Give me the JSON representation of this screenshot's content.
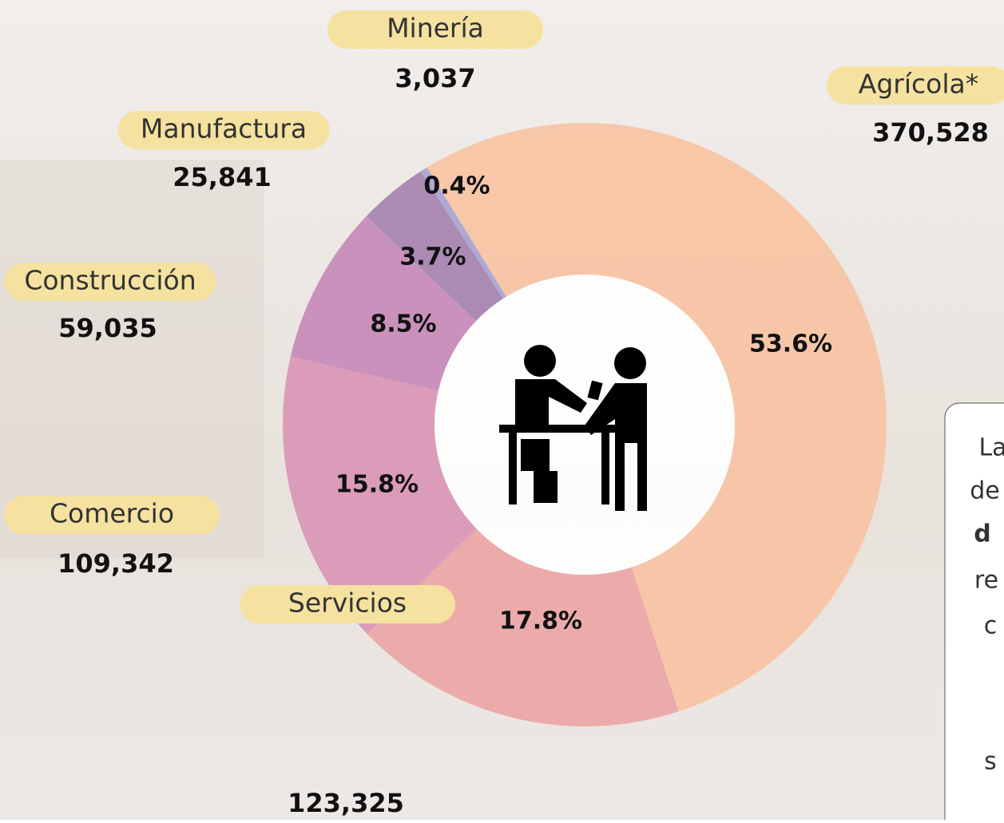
{
  "chart_data": {
    "type": "donut",
    "categories": [
      "Agrícola*",
      "Servicios",
      "Comercio",
      "Construcción",
      "Manufactura",
      "Minería"
    ],
    "values": [
      53.6,
      17.8,
      15.8,
      8.5,
      3.7,
      0.4
    ],
    "value_labels": [
      "53.6%",
      "17.8%",
      "15.8%",
      "8.5%",
      "3.7%",
      "0.4%"
    ],
    "count_labels": [
      "370,528",
      "123,325",
      "109,342",
      "59,035",
      "25,841",
      "3,037"
    ],
    "colors": [
      "#f7c3a3",
      "#eca6a6",
      "#d996b6",
      "#c58ab9",
      "#a582b0",
      "#a8a3d2"
    ],
    "note_fragments": [
      "La",
      "de",
      "d",
      "re",
      "c",
      "s"
    ]
  }
}
